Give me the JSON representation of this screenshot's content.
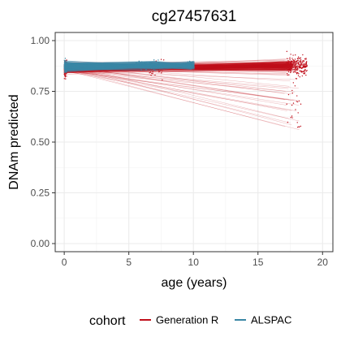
{
  "chart_data": {
    "type": "line",
    "title": "cg27457631",
    "xlabel": "age (years)",
    "ylabel": "DNAm predicted",
    "xlim": [
      -0.7,
      20.8
    ],
    "ylim": [
      -0.04,
      1.04
    ],
    "x_ticks": [
      0,
      5,
      10,
      15,
      20
    ],
    "y_ticks": [
      0.0,
      0.25,
      0.5,
      0.75,
      1.0
    ],
    "x_tick_labels": [
      "0",
      "5",
      "10",
      "15",
      "20"
    ],
    "y_tick_labels": [
      "0.00",
      "0.25",
      "0.50",
      "0.75",
      "1.00"
    ],
    "grid": true,
    "legend_position": "bottom",
    "legend_title": "cohort",
    "series": [
      {
        "name": "Generation R",
        "color": "#c00f1b",
        "age_range": [
          0,
          18.8
        ],
        "dnam_range": [
          0.54,
          0.92
        ],
        "mean_line": [
          [
            0,
            0.86
          ],
          [
            10,
            0.868
          ],
          [
            17.5,
            0.875
          ]
        ]
      },
      {
        "name": "ALSPAC",
        "color": "#3a87a5",
        "age_range": [
          0,
          10.2
        ],
        "dnam_range": [
          0.84,
          0.905
        ],
        "mean_line": [
          [
            0,
            0.872
          ],
          [
            7,
            0.878
          ],
          [
            10,
            0.878
          ]
        ]
      }
    ]
  }
}
